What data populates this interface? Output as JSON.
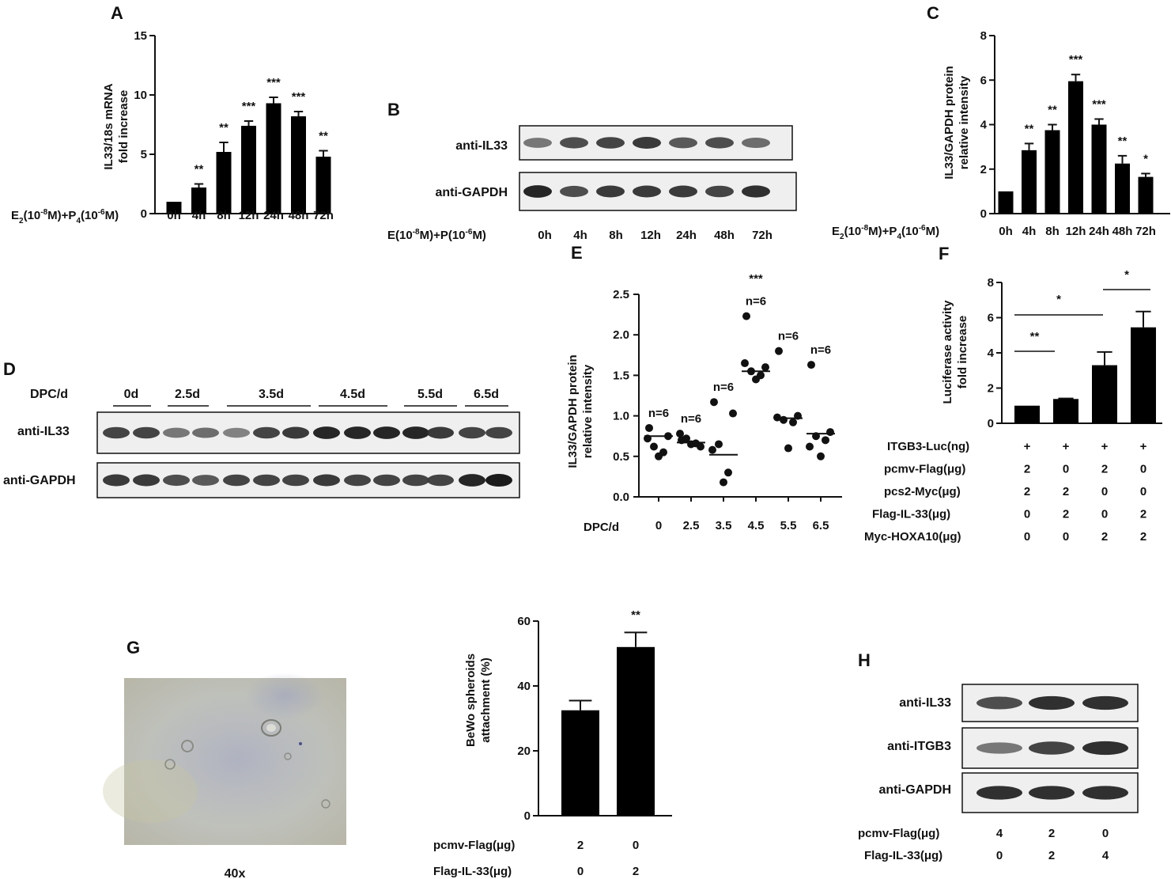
{
  "panels": {
    "A": {
      "letter": "A",
      "ylabel": [
        "IL33/18s mRNA",
        "fold increase"
      ],
      "xlabel": [
        "E",
        "2",
        "(10",
        "-8",
        "M)+P",
        "4",
        "(10",
        "-6",
        "M)"
      ],
      "stars": [
        "",
        "**",
        "**",
        "***",
        "***",
        "***",
        "**"
      ]
    },
    "B": {
      "letter": "B",
      "rows": [
        "anti-IL33",
        "anti-GAPDH"
      ],
      "xlabel": [
        "E(10",
        "-8",
        "M)+P(10",
        "-6",
        "M)"
      ],
      "lanes": [
        "0h",
        "4h",
        "8h",
        "12h",
        "24h",
        "48h",
        "72h"
      ]
    },
    "C": {
      "letter": "C",
      "ylabel": [
        "IL33/GAPDH protein",
        "relative intensity"
      ],
      "xlabel": [
        "E",
        "2",
        "(10",
        "-8",
        "M)+P",
        "4",
        "(10",
        "-6",
        "M)"
      ],
      "stars": [
        "",
        "**",
        "**",
        "***",
        "***",
        "**",
        "*"
      ]
    },
    "D": {
      "letter": "D",
      "header_label": "DPC/d",
      "groups": [
        "0d",
        "2.5d",
        "3.5d",
        "4.5d",
        "5.5d",
        "6.5d"
      ],
      "rows": [
        "anti-IL33",
        "anti-GAPDH"
      ]
    },
    "E": {
      "letter": "E",
      "ylabel": [
        "IL33/GAPDH protein",
        "relative intensity"
      ],
      "xlabel": "DPC/d",
      "n_labels": [
        "n=6",
        "n=6",
        "n=6",
        "n=6",
        "n=6",
        "n=6"
      ],
      "star_label": "***"
    },
    "F": {
      "letter": "F",
      "ylabel": [
        "Luciferase activity",
        "fold increase"
      ],
      "rows": [
        {
          "label": "ITGB3-Luc(ng)",
          "values": [
            "+",
            "+",
            "+",
            "+"
          ]
        },
        {
          "label": "pcmv-Flag(μg)",
          "values": [
            "2",
            "0",
            "2",
            "0"
          ]
        },
        {
          "label": "pcs2-Myc(μg)",
          "values": [
            "2",
            "2",
            "0",
            "0"
          ]
        },
        {
          "label": "Flag-IL-33(μg)",
          "values": [
            "0",
            "2",
            "0",
            "2"
          ]
        },
        {
          "label": "Myc-HOXA10(μg)",
          "values": [
            "0",
            "0",
            "2",
            "2"
          ]
        }
      ],
      "comparisons": [
        "**",
        "*",
        "*"
      ]
    },
    "G": {
      "letter": "G",
      "magnification": "40x",
      "ylabel": [
        "BeWo spheroids",
        "attachment (%)"
      ],
      "rows": [
        {
          "label": "pcmv-Flag(μg)",
          "values": [
            "2",
            "0"
          ]
        },
        {
          "label": "Flag-IL-33(μg)",
          "values": [
            "0",
            "2"
          ]
        }
      ],
      "star_label": "**"
    },
    "H": {
      "letter": "H",
      "rows": [
        "anti-IL33",
        "anti-ITGB3",
        "anti-GAPDH"
      ],
      "conditions": [
        {
          "label": "pcmv-Flag(μg)",
          "values": [
            "4",
            "2",
            "0"
          ]
        },
        {
          "label": "Flag-IL-33(μg)",
          "values": [
            "0",
            "2",
            "4"
          ]
        }
      ]
    }
  },
  "chart_data": [
    {
      "id": "A",
      "type": "bar",
      "categories": [
        "0h",
        "4h",
        "8h",
        "12h",
        "24h",
        "48h",
        "72h"
      ],
      "values": [
        1.0,
        2.2,
        5.2,
        7.4,
        9.3,
        8.2,
        4.8
      ],
      "errors": [
        0.0,
        0.3,
        0.8,
        0.4,
        0.5,
        0.4,
        0.5
      ],
      "ylim": [
        0,
        15
      ],
      "yticks": [
        0,
        5,
        10,
        15
      ],
      "color": "#000000"
    },
    {
      "id": "C",
      "type": "bar",
      "categories": [
        "0h",
        "4h",
        "8h",
        "12h",
        "24h",
        "48h",
        "72h"
      ],
      "values": [
        1.0,
        2.85,
        3.75,
        5.95,
        4.0,
        2.25,
        1.65
      ],
      "errors": [
        0.0,
        0.3,
        0.25,
        0.3,
        0.25,
        0.35,
        0.15
      ],
      "ylim": [
        0,
        8
      ],
      "yticks": [
        0,
        2,
        4,
        6,
        8
      ],
      "color": "#000000"
    },
    {
      "id": "E",
      "type": "scatter",
      "categories": [
        "0",
        "2.5",
        "3.5",
        "4.5",
        "5.5",
        "6.5"
      ],
      "points": [
        [
          0.85,
          0.75,
          0.62,
          0.55,
          0.5,
          0.72
        ],
        [
          0.7,
          0.62,
          0.72,
          0.66,
          0.65,
          0.78
        ],
        [
          1.17,
          1.03,
          0.65,
          0.3,
          0.18,
          0.58
        ],
        [
          2.23,
          1.6,
          1.55,
          1.5,
          1.45,
          1.65
        ],
        [
          1.8,
          1.0,
          0.95,
          0.92,
          0.6,
          0.98
        ],
        [
          1.63,
          0.8,
          0.75,
          0.7,
          0.5,
          0.62
        ]
      ],
      "means": [
        0.75,
        0.67,
        0.52,
        1.55,
        0.97,
        0.78
      ],
      "ylim": [
        0,
        2.5
      ],
      "yticks": [
        "0.0",
        "0.5",
        "1.0",
        "1.5",
        "2.0",
        "2.5"
      ]
    },
    {
      "id": "F",
      "type": "bar",
      "categories": [
        "1",
        "2",
        "3",
        "4"
      ],
      "values": [
        1.0,
        1.38,
        3.3,
        5.45
      ],
      "errors": [
        0.0,
        0.03,
        0.75,
        0.9
      ],
      "ylim": [
        0,
        8
      ],
      "yticks": [
        0,
        2,
        4,
        6,
        8
      ],
      "color": "#000000"
    },
    {
      "id": "G",
      "type": "bar",
      "categories": [
        "1",
        "2"
      ],
      "values": [
        32.5,
        52.0
      ],
      "errors": [
        3.0,
        4.5
      ],
      "ylim": [
        0,
        60
      ],
      "yticks": [
        0,
        20,
        40,
        60
      ],
      "color": "#000000"
    }
  ],
  "blots": {
    "B": {
      "rows": [
        {
          "name": "il33",
          "intensities": [
            0.55,
            0.75,
            0.8,
            0.85,
            0.7,
            0.75,
            0.6
          ]
        },
        {
          "name": "gapdh",
          "intensities": [
            0.95,
            0.75,
            0.85,
            0.85,
            0.85,
            0.8,
            0.9
          ]
        }
      ]
    },
    "D": {
      "rows": [
        {
          "name": "il33",
          "intensities": [
            0.8,
            0.8,
            0.55,
            0.6,
            0.5,
            0.8,
            0.85,
            0.95,
            0.95,
            0.95,
            0.95,
            0.85,
            0.8,
            0.8
          ]
        },
        {
          "name": "gapdh",
          "intensities": [
            0.85,
            0.85,
            0.75,
            0.7,
            0.8,
            0.8,
            0.8,
            0.85,
            0.8,
            0.8,
            0.8,
            0.8,
            0.95,
            1.0
          ]
        }
      ]
    },
    "H": {
      "rows": [
        {
          "name": "il33",
          "intensities": [
            0.75,
            0.9,
            0.9
          ]
        },
        {
          "name": "itgb3",
          "intensities": [
            0.55,
            0.8,
            0.9
          ]
        },
        {
          "name": "gapdh",
          "intensities": [
            0.9,
            0.9,
            0.9
          ]
        }
      ]
    }
  }
}
